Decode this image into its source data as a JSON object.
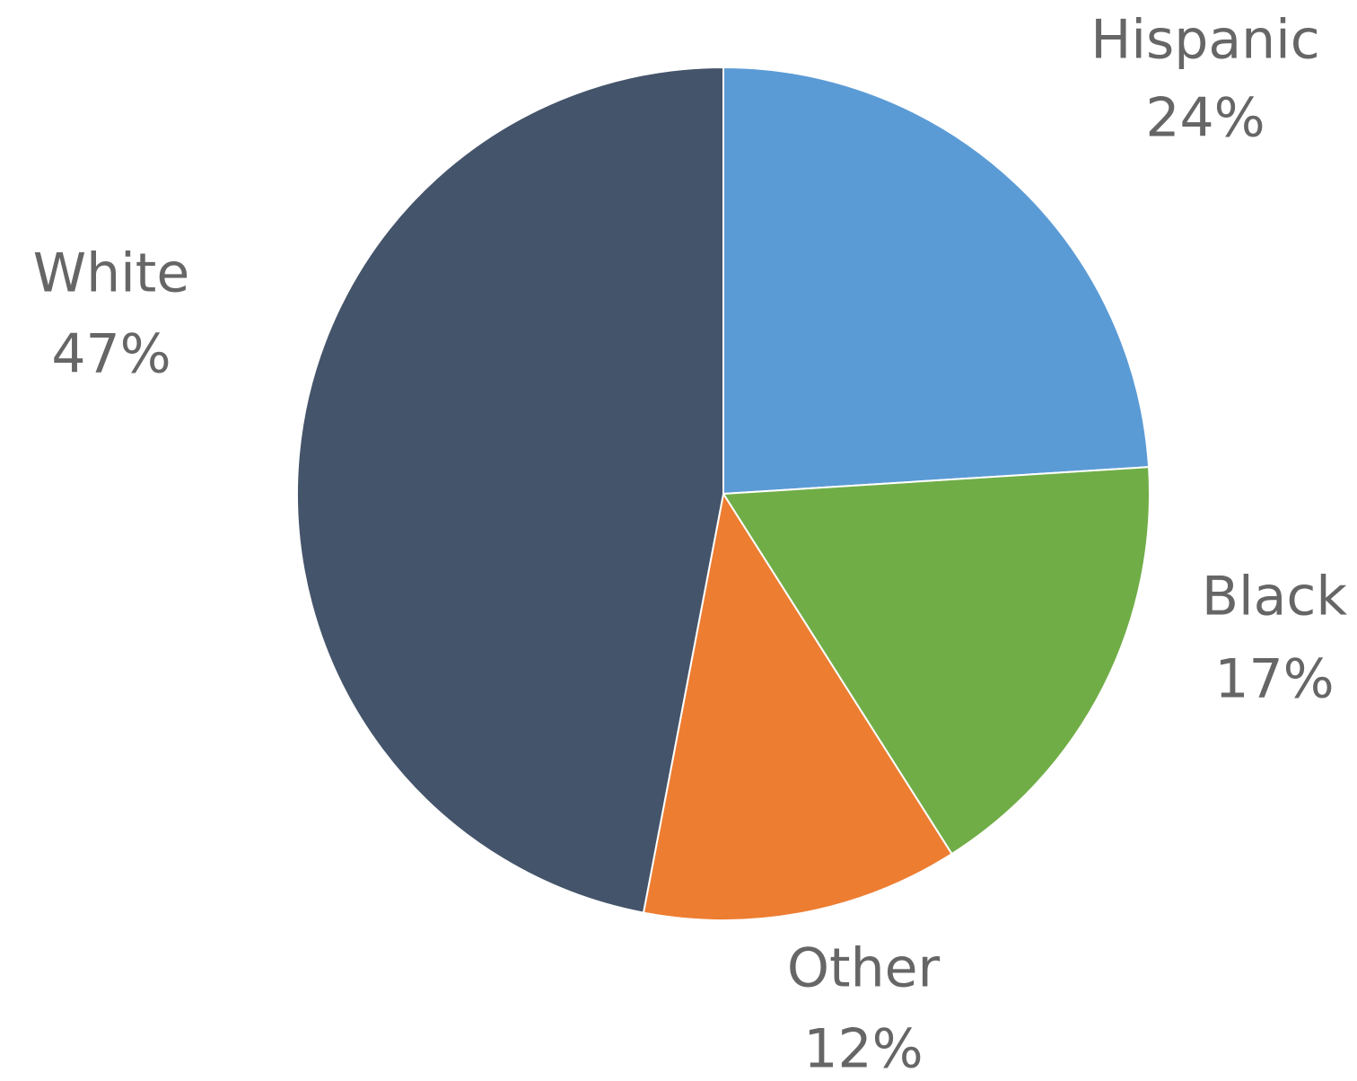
{
  "chart_data": {
    "type": "pie",
    "title": "",
    "slices": [
      {
        "label": "Hispanic",
        "value": 24,
        "value_label": "24%",
        "color": "#5B9BD5"
      },
      {
        "label": "Black",
        "value": 17,
        "value_label": "17%",
        "color": "#70AD47"
      },
      {
        "label": "Other",
        "value": 12,
        "value_label": "12%",
        "color": "#ED7D31"
      },
      {
        "label": "White",
        "value": 47,
        "value_label": "47%",
        "color": "#44546A"
      }
    ],
    "start_angle_deg": 0,
    "direction": "clockwise",
    "legend": "none",
    "data_labels": "outside"
  }
}
